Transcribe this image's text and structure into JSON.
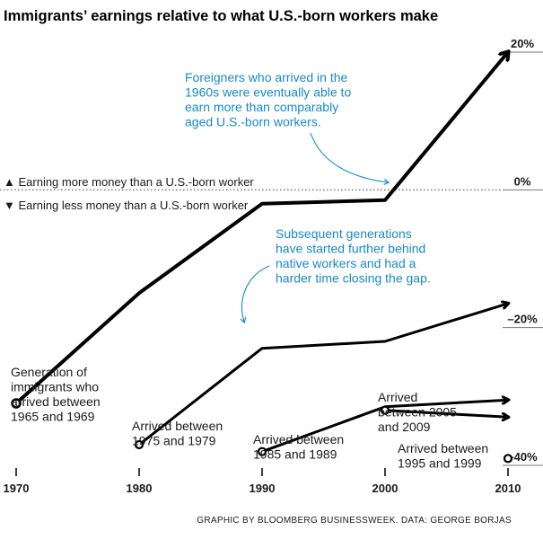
{
  "chart_data": {
    "type": "line",
    "title": "Immigrants’ earnings relative to what U.S.-born workers make",
    "x_ticks": [
      "1970",
      "1980",
      "1990",
      "2000",
      "2010"
    ],
    "y_ticks": [
      "20%",
      "0%",
      "–20%",
      "–40%"
    ],
    "xlim": [
      1970,
      2010
    ],
    "ylim": [
      -40,
      20
    ],
    "zero_line_labels": {
      "above": "▲ Earning more money than a U.S.-born worker",
      "below": "▼ Earning less money than a U.S.-born worker"
    },
    "series": [
      {
        "label_lines": [
          "Generation of",
          "immigrants who",
          "arrived between",
          "1965 and 1969"
        ],
        "x": [
          1970,
          1980,
          1990,
          2000,
          2010
        ],
        "y": [
          -31,
          -15,
          -2,
          -1.5,
          20
        ],
        "weight": "heavy"
      },
      {
        "label_lines": [
          "Arrived between",
          "1975 and 1979"
        ],
        "x": [
          1980,
          1990,
          2000,
          2010
        ],
        "y": [
          -37,
          -23,
          -22,
          -16.5
        ],
        "weight": "normal"
      },
      {
        "label_lines": [
          "Arrived between",
          "1985 and 1989"
        ],
        "x": [
          1990,
          2000,
          2010
        ],
        "y": [
          -38,
          -31.5,
          -30.5
        ],
        "weight": "normal"
      },
      {
        "label_lines": [
          "Arrived",
          "between 2005",
          "and 2009"
        ],
        "x": [
          2000,
          2010
        ],
        "y": [
          -32,
          -33
        ],
        "weight": "normal"
      },
      {
        "label_lines": [
          "Arrived between",
          "1995 and 1999"
        ],
        "x": [
          2010
        ],
        "y": [
          -39
        ],
        "weight": "normal"
      }
    ],
    "annotations": [
      [
        "Foreigners who arrived in the",
        "1960s were eventually able to",
        "earn more than comparably",
        "aged U.S.-born workers."
      ],
      [
        "Subsequent generations",
        "have started further behind",
        "native workers and had a",
        "harder time closing the gap."
      ]
    ],
    "credit": "GRAPHIC BY BLOOMBERG BUSINESSWEEK. DATA: GEORGE BORJAS",
    "colors": {
      "line": "#000000",
      "annotation": "#1a88c4",
      "grid": "#888888"
    }
  }
}
